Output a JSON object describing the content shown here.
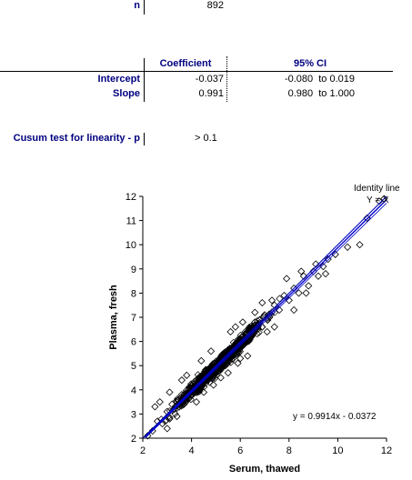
{
  "summary": {
    "n_label": "n",
    "n_value": "892"
  },
  "regression_table": {
    "col_coefficient": "Coefficient",
    "col_ci": "95% CI",
    "rows": [
      {
        "label": "Intercept",
        "coefficient": "-0.037",
        "ci": "-0.080  to 0.019"
      },
      {
        "label": "Slope",
        "coefficient": "0.991",
        "ci": "0.980  to 1.000"
      }
    ]
  },
  "cusum": {
    "label": "Cusum test for linearity - p",
    "value": "> 0.1"
  },
  "colors": {
    "label_navy": "#000080",
    "fit_line": "#0000cc",
    "identity_line": "#000080",
    "points": "#000000"
  },
  "chart_data": {
    "type": "scatter",
    "xlabel": "Serum, thawed",
    "ylabel": "Plasma, fresh",
    "xlim": [
      2,
      12
    ],
    "ylim": [
      2,
      12
    ],
    "xticks": [
      2,
      4,
      6,
      8,
      10,
      12
    ],
    "yticks": [
      2,
      3,
      4,
      5,
      6,
      7,
      8,
      9,
      10,
      11,
      12
    ],
    "grid": false,
    "n_points": 892,
    "regression": {
      "slope": 0.9914,
      "intercept": -0.0372,
      "label": "y = 0.9914x - 0.0372"
    },
    "identity_line": {
      "label_line1": "Identity line",
      "label_line2": "Y = X"
    },
    "points": [
      [
        2.2,
        2.1
      ],
      [
        2.4,
        2.3
      ],
      [
        2.6,
        2.7
      ],
      [
        2.8,
        2.6
      ],
      [
        3.0,
        3.1
      ],
      [
        3.1,
        2.8
      ],
      [
        3.2,
        3.4
      ],
      [
        3.3,
        3.2
      ],
      [
        3.4,
        3.5
      ],
      [
        3.5,
        3.3
      ],
      [
        3.6,
        3.8
      ],
      [
        3.7,
        3.6
      ],
      [
        3.8,
        3.7
      ],
      [
        3.9,
        4.1
      ],
      [
        4.0,
        3.8
      ],
      [
        4.0,
        4.2
      ],
      [
        4.1,
        4.0
      ],
      [
        4.2,
        4.4
      ],
      [
        4.3,
        4.1
      ],
      [
        4.4,
        4.5
      ],
      [
        4.5,
        4.3
      ],
      [
        4.6,
        4.7
      ],
      [
        4.7,
        4.5
      ],
      [
        4.8,
        4.9
      ],
      [
        4.9,
        4.7
      ],
      [
        5.0,
        5.1
      ],
      [
        5.1,
        4.9
      ],
      [
        5.2,
        5.3
      ],
      [
        5.3,
        5.0
      ],
      [
        5.4,
        5.5
      ],
      [
        5.5,
        5.3
      ],
      [
        5.6,
        5.7
      ],
      [
        5.7,
        5.5
      ],
      [
        5.8,
        5.9
      ],
      [
        5.9,
        5.6
      ],
      [
        6.0,
        6.1
      ],
      [
        6.1,
        5.9
      ],
      [
        6.2,
        6.3
      ],
      [
        6.3,
        6.0
      ],
      [
        6.4,
        6.5
      ],
      [
        6.5,
        6.3
      ],
      [
        6.6,
        6.8
      ],
      [
        6.7,
        6.5
      ],
      [
        6.8,
        6.9
      ],
      [
        6.9,
        6.6
      ],
      [
        7.0,
        7.1
      ],
      [
        7.2,
        7.0
      ],
      [
        7.4,
        7.5
      ],
      [
        7.6,
        7.3
      ],
      [
        7.8,
        7.9
      ],
      [
        8.0,
        7.7
      ],
      [
        8.2,
        8.2
      ],
      [
        8.4,
        8.0
      ],
      [
        8.6,
        8.7
      ],
      [
        8.8,
        8.3
      ],
      [
        9.0,
        8.9
      ],
      [
        9.2,
        8.7
      ],
      [
        9.4,
        9.1
      ],
      [
        9.6,
        9.4
      ],
      [
        9.9,
        9.6
      ],
      [
        10.4,
        9.9
      ],
      [
        10.9,
        10.0
      ],
      [
        11.2,
        11.1
      ],
      [
        11.7,
        11.8
      ],
      [
        11.9,
        11.9
      ],
      [
        2.5,
        3.3
      ],
      [
        3.0,
        2.4
      ],
      [
        3.6,
        4.4
      ],
      [
        4.2,
        3.5
      ],
      [
        4.8,
        5.6
      ],
      [
        5.2,
        4.5
      ],
      [
        5.8,
        6.6
      ],
      [
        6.3,
        5.4
      ],
      [
        6.9,
        7.6
      ],
      [
        7.4,
        6.6
      ],
      [
        7.9,
        8.6
      ],
      [
        8.2,
        7.3
      ],
      [
        8.7,
        8.0
      ],
      [
        9.5,
        8.8
      ],
      [
        3.1,
        3.9
      ],
      [
        4.5,
        3.9
      ],
      [
        5.6,
        6.4
      ],
      [
        6.0,
        5.3
      ],
      [
        7.1,
        6.4
      ],
      [
        2.7,
        3.5
      ],
      [
        3.4,
        2.9
      ],
      [
        4.4,
        5.2
      ],
      [
        5.5,
        4.7
      ],
      [
        6.6,
        7.2
      ],
      [
        7.3,
        7.7
      ],
      [
        6.1,
        6.8
      ],
      [
        4.9,
        4.2
      ],
      [
        3.8,
        4.6
      ],
      [
        5.9,
        5.1
      ],
      [
        8.5,
        8.9
      ],
      [
        9.1,
        9.2
      ]
    ]
  }
}
